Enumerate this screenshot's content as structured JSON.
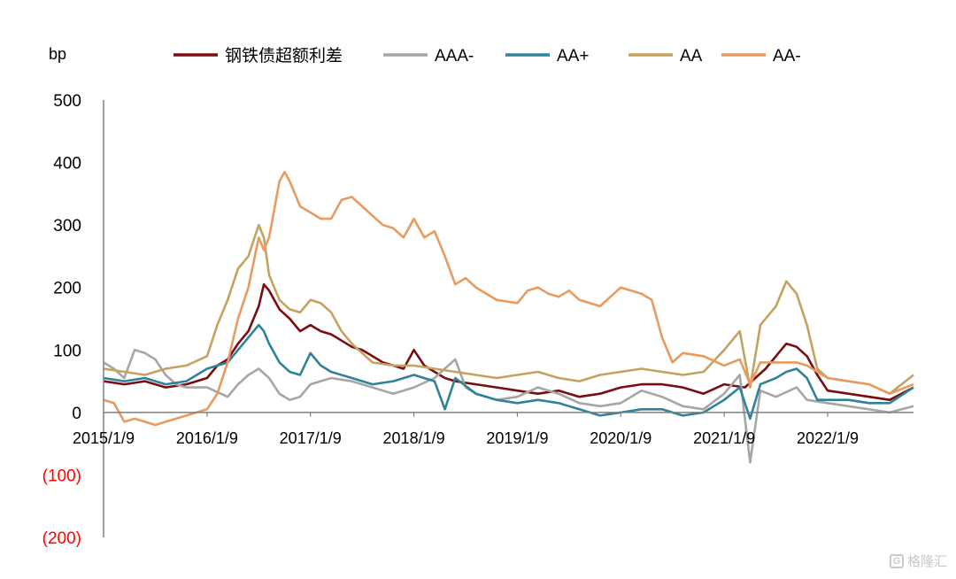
{
  "chart_data": {
    "type": "line",
    "unit_label": "bp",
    "ylim": [
      -200,
      500
    ],
    "y_ticks": [
      500,
      400,
      300,
      200,
      100,
      0,
      -100,
      -200
    ],
    "y_tick_labels": [
      "500",
      "400",
      "300",
      "200",
      "100",
      "0",
      "(100)",
      "(200)"
    ],
    "x_tick_labels": [
      "2015/1/9",
      "2016/1/9",
      "2017/1/9",
      "2018/1/9",
      "2019/1/9",
      "2020/1/9",
      "2021/1/9",
      "2022/1/9"
    ],
    "x_ticks": [
      2015.0,
      2016.0,
      2017.0,
      2018.0,
      2019.0,
      2020.0,
      2021.0,
      2022.0
    ],
    "xlim": [
      2015.0,
      2022.83
    ],
    "legend_position": "top",
    "grid": false,
    "series": [
      {
        "name": "钢铁债超额利差",
        "color": "#7b0c10",
        "points": [
          [
            2015.0,
            50
          ],
          [
            2015.2,
            45
          ],
          [
            2015.4,
            50
          ],
          [
            2015.6,
            40
          ],
          [
            2015.8,
            45
          ],
          [
            2016.0,
            55
          ],
          [
            2016.1,
            75
          ],
          [
            2016.2,
            85
          ],
          [
            2016.3,
            110
          ],
          [
            2016.4,
            130
          ],
          [
            2016.5,
            170
          ],
          [
            2016.55,
            205
          ],
          [
            2016.6,
            195
          ],
          [
            2016.7,
            165
          ],
          [
            2016.8,
            150
          ],
          [
            2016.9,
            130
          ],
          [
            2017.0,
            140
          ],
          [
            2017.1,
            130
          ],
          [
            2017.2,
            125
          ],
          [
            2017.3,
            115
          ],
          [
            2017.4,
            105
          ],
          [
            2017.5,
            100
          ],
          [
            2017.6,
            90
          ],
          [
            2017.7,
            80
          ],
          [
            2017.8,
            75
          ],
          [
            2017.9,
            70
          ],
          [
            2018.0,
            100
          ],
          [
            2018.1,
            75
          ],
          [
            2018.2,
            65
          ],
          [
            2018.3,
            55
          ],
          [
            2018.4,
            50
          ],
          [
            2018.6,
            45
          ],
          [
            2018.8,
            40
          ],
          [
            2019.0,
            35
          ],
          [
            2019.2,
            30
          ],
          [
            2019.4,
            35
          ],
          [
            2019.6,
            25
          ],
          [
            2019.8,
            30
          ],
          [
            2020.0,
            40
          ],
          [
            2020.2,
            45
          ],
          [
            2020.4,
            45
          ],
          [
            2020.6,
            40
          ],
          [
            2020.8,
            30
          ],
          [
            2021.0,
            45
          ],
          [
            2021.2,
            40
          ],
          [
            2021.4,
            70
          ],
          [
            2021.5,
            90
          ],
          [
            2021.6,
            110
          ],
          [
            2021.7,
            105
          ],
          [
            2021.8,
            90
          ],
          [
            2021.9,
            60
          ],
          [
            2022.0,
            35
          ],
          [
            2022.2,
            30
          ],
          [
            2022.4,
            25
          ],
          [
            2022.6,
            20
          ],
          [
            2022.83,
            40
          ]
        ]
      },
      {
        "name": "AAA-",
        "color": "#a6a6a6",
        "points": [
          [
            2015.0,
            80
          ],
          [
            2015.1,
            70
          ],
          [
            2015.2,
            55
          ],
          [
            2015.3,
            100
          ],
          [
            2015.4,
            95
          ],
          [
            2015.5,
            85
          ],
          [
            2015.6,
            60
          ],
          [
            2015.7,
            45
          ],
          [
            2015.8,
            40
          ],
          [
            2016.0,
            40
          ],
          [
            2016.2,
            25
          ],
          [
            2016.3,
            45
          ],
          [
            2016.4,
            60
          ],
          [
            2016.5,
            70
          ],
          [
            2016.6,
            55
          ],
          [
            2016.7,
            30
          ],
          [
            2016.8,
            20
          ],
          [
            2016.9,
            25
          ],
          [
            2017.0,
            45
          ],
          [
            2017.2,
            55
          ],
          [
            2017.4,
            50
          ],
          [
            2017.6,
            40
          ],
          [
            2017.8,
            30
          ],
          [
            2018.0,
            40
          ],
          [
            2018.2,
            55
          ],
          [
            2018.4,
            85
          ],
          [
            2018.5,
            40
          ],
          [
            2018.6,
            30
          ],
          [
            2018.8,
            20
          ],
          [
            2019.0,
            25
          ],
          [
            2019.2,
            40
          ],
          [
            2019.4,
            30
          ],
          [
            2019.6,
            15
          ],
          [
            2019.8,
            10
          ],
          [
            2020.0,
            15
          ],
          [
            2020.2,
            35
          ],
          [
            2020.4,
            25
          ],
          [
            2020.6,
            10
          ],
          [
            2020.8,
            5
          ],
          [
            2021.0,
            30
          ],
          [
            2021.15,
            60
          ],
          [
            2021.25,
            -80
          ],
          [
            2021.35,
            35
          ],
          [
            2021.5,
            25
          ],
          [
            2021.7,
            40
          ],
          [
            2021.8,
            20
          ],
          [
            2022.0,
            15
          ],
          [
            2022.2,
            10
          ],
          [
            2022.4,
            5
          ],
          [
            2022.6,
            0
          ],
          [
            2022.83,
            10
          ]
        ]
      },
      {
        "name": "AA+",
        "color": "#2e8399",
        "points": [
          [
            2015.0,
            55
          ],
          [
            2015.2,
            50
          ],
          [
            2015.4,
            55
          ],
          [
            2015.6,
            45
          ],
          [
            2015.8,
            50
          ],
          [
            2016.0,
            70
          ],
          [
            2016.1,
            75
          ],
          [
            2016.2,
            80
          ],
          [
            2016.3,
            100
          ],
          [
            2016.4,
            120
          ],
          [
            2016.5,
            140
          ],
          [
            2016.55,
            130
          ],
          [
            2016.6,
            110
          ],
          [
            2016.7,
            80
          ],
          [
            2016.8,
            65
          ],
          [
            2016.9,
            60
          ],
          [
            2017.0,
            95
          ],
          [
            2017.1,
            75
          ],
          [
            2017.2,
            65
          ],
          [
            2017.4,
            55
          ],
          [
            2017.6,
            45
          ],
          [
            2017.8,
            50
          ],
          [
            2018.0,
            60
          ],
          [
            2018.2,
            50
          ],
          [
            2018.3,
            5
          ],
          [
            2018.4,
            55
          ],
          [
            2018.6,
            30
          ],
          [
            2018.8,
            20
          ],
          [
            2019.0,
            15
          ],
          [
            2019.2,
            20
          ],
          [
            2019.4,
            15
          ],
          [
            2019.6,
            5
          ],
          [
            2019.8,
            -5
          ],
          [
            2020.0,
            0
          ],
          [
            2020.2,
            5
          ],
          [
            2020.4,
            5
          ],
          [
            2020.6,
            -5
          ],
          [
            2020.8,
            0
          ],
          [
            2021.0,
            20
          ],
          [
            2021.15,
            40
          ],
          [
            2021.25,
            -10
          ],
          [
            2021.35,
            45
          ],
          [
            2021.5,
            55
          ],
          [
            2021.6,
            65
          ],
          [
            2021.7,
            70
          ],
          [
            2021.8,
            55
          ],
          [
            2021.9,
            20
          ],
          [
            2022.0,
            20
          ],
          [
            2022.2,
            20
          ],
          [
            2022.4,
            15
          ],
          [
            2022.6,
            15
          ],
          [
            2022.83,
            40
          ]
        ]
      },
      {
        "name": "AA",
        "color": "#c4a25f",
        "points": [
          [
            2015.0,
            70
          ],
          [
            2015.2,
            65
          ],
          [
            2015.4,
            60
          ],
          [
            2015.6,
            70
          ],
          [
            2015.8,
            75
          ],
          [
            2016.0,
            90
          ],
          [
            2016.1,
            140
          ],
          [
            2016.2,
            180
          ],
          [
            2016.3,
            230
          ],
          [
            2016.4,
            250
          ],
          [
            2016.5,
            300
          ],
          [
            2016.55,
            280
          ],
          [
            2016.6,
            220
          ],
          [
            2016.7,
            180
          ],
          [
            2016.8,
            165
          ],
          [
            2016.9,
            160
          ],
          [
            2017.0,
            180
          ],
          [
            2017.1,
            175
          ],
          [
            2017.2,
            160
          ],
          [
            2017.3,
            130
          ],
          [
            2017.4,
            110
          ],
          [
            2017.5,
            95
          ],
          [
            2017.6,
            80
          ],
          [
            2017.8,
            75
          ],
          [
            2018.0,
            75
          ],
          [
            2018.2,
            70
          ],
          [
            2018.4,
            65
          ],
          [
            2018.6,
            60
          ],
          [
            2018.8,
            55
          ],
          [
            2019.0,
            60
          ],
          [
            2019.2,
            65
          ],
          [
            2019.4,
            55
          ],
          [
            2019.6,
            50
          ],
          [
            2019.8,
            60
          ],
          [
            2020.0,
            65
          ],
          [
            2020.2,
            70
          ],
          [
            2020.4,
            65
          ],
          [
            2020.6,
            60
          ],
          [
            2020.8,
            65
          ],
          [
            2021.0,
            100
          ],
          [
            2021.15,
            130
          ],
          [
            2021.25,
            40
          ],
          [
            2021.35,
            140
          ],
          [
            2021.5,
            170
          ],
          [
            2021.6,
            210
          ],
          [
            2021.7,
            190
          ],
          [
            2021.8,
            140
          ],
          [
            2021.9,
            70
          ],
          [
            2022.0,
            55
          ],
          [
            2022.2,
            50
          ],
          [
            2022.4,
            45
          ],
          [
            2022.6,
            30
          ],
          [
            2022.83,
            60
          ]
        ]
      },
      {
        "name": "AA-",
        "color": "#e89a5f",
        "points": [
          [
            2015.0,
            20
          ],
          [
            2015.1,
            15
          ],
          [
            2015.2,
            -15
          ],
          [
            2015.3,
            -10
          ],
          [
            2015.4,
            -15
          ],
          [
            2015.5,
            -20
          ],
          [
            2015.6,
            -15
          ],
          [
            2015.8,
            -5
          ],
          [
            2016.0,
            5
          ],
          [
            2016.1,
            30
          ],
          [
            2016.2,
            80
          ],
          [
            2016.3,
            150
          ],
          [
            2016.4,
            200
          ],
          [
            2016.5,
            280
          ],
          [
            2016.55,
            260
          ],
          [
            2016.6,
            280
          ],
          [
            2016.7,
            370
          ],
          [
            2016.75,
            385
          ],
          [
            2016.8,
            370
          ],
          [
            2016.9,
            330
          ],
          [
            2017.0,
            320
          ],
          [
            2017.1,
            310
          ],
          [
            2017.2,
            310
          ],
          [
            2017.3,
            340
          ],
          [
            2017.4,
            345
          ],
          [
            2017.5,
            330
          ],
          [
            2017.6,
            315
          ],
          [
            2017.7,
            300
          ],
          [
            2017.8,
            295
          ],
          [
            2017.9,
            280
          ],
          [
            2018.0,
            310
          ],
          [
            2018.1,
            280
          ],
          [
            2018.2,
            290
          ],
          [
            2018.3,
            250
          ],
          [
            2018.4,
            205
          ],
          [
            2018.5,
            215
          ],
          [
            2018.6,
            200
          ],
          [
            2018.8,
            180
          ],
          [
            2019.0,
            175
          ],
          [
            2019.1,
            195
          ],
          [
            2019.2,
            200
          ],
          [
            2019.3,
            190
          ],
          [
            2019.4,
            185
          ],
          [
            2019.5,
            195
          ],
          [
            2019.6,
            180
          ],
          [
            2019.8,
            170
          ],
          [
            2020.0,
            200
          ],
          [
            2020.2,
            190
          ],
          [
            2020.3,
            180
          ],
          [
            2020.4,
            120
          ],
          [
            2020.5,
            80
          ],
          [
            2020.6,
            95
          ],
          [
            2020.8,
            90
          ],
          [
            2021.0,
            75
          ],
          [
            2021.15,
            85
          ],
          [
            2021.25,
            45
          ],
          [
            2021.35,
            80
          ],
          [
            2021.5,
            80
          ],
          [
            2021.7,
            80
          ],
          [
            2021.8,
            75
          ],
          [
            2022.0,
            55
          ],
          [
            2022.2,
            50
          ],
          [
            2022.4,
            45
          ],
          [
            2022.6,
            30
          ],
          [
            2022.83,
            45
          ]
        ]
      }
    ]
  },
  "watermark": {
    "icon": "G",
    "text": "格隆汇"
  }
}
